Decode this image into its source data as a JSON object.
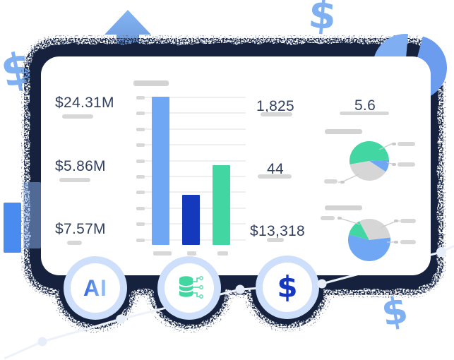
{
  "card": {
    "kpis": {
      "revenue_1": "$24.31M",
      "revenue_2": "$5.86M",
      "revenue_3": "$7.57M",
      "count_1": "1,825",
      "count_2": "44",
      "amount_1": "$13,318",
      "ratio_1": "5.6"
    }
  },
  "icons": {
    "ai_label": "AI",
    "dollar_symbol": "$"
  },
  "decor": {
    "dollar_sign_left": "$",
    "dollar_sign_top": "$",
    "dollar_sign_bottom": "$"
  },
  "colors": {
    "bar_blue_light": "#6FA7F5",
    "bar_blue_dark": "#1539BD",
    "bar_green": "#41D6A2",
    "pie_green": "#41D6A2",
    "pie_blue": "#6FA7F5",
    "pie_gray": "#D6D6D6",
    "placeholder_gray": "#D7D7D7",
    "text_navy": "#33415F",
    "halo_navy": "#15223E",
    "ring_light_blue": "#CDDFFB",
    "accent_dollar_blue": "#7FB0F2",
    "icon_dollar_blue": "#1638C0"
  },
  "chart_data": [
    {
      "type": "bar",
      "title": "",
      "categories": [
        "",
        "",
        ""
      ],
      "values": [
        10,
        3.4,
        5.4
      ],
      "max": 10,
      "colors": [
        "#6FA7F5",
        "#1539BD",
        "#41D6A2"
      ],
      "note": "unlabeled placeholder bar chart, 10 axis ticks, values relative to full scale"
    },
    {
      "type": "pie",
      "start_angle": -100,
      "slices": [
        {
          "color": "green",
          "pct": 52
        },
        {
          "color": "blue",
          "pct": 10
        },
        {
          "color": "gray",
          "pct": 38
        }
      ]
    },
    {
      "type": "pie",
      "start_angle": -75,
      "slices": [
        {
          "color": "green",
          "pct": 13
        },
        {
          "color": "gray",
          "pct": 31
        },
        {
          "color": "blue",
          "pct": 56
        }
      ]
    }
  ]
}
